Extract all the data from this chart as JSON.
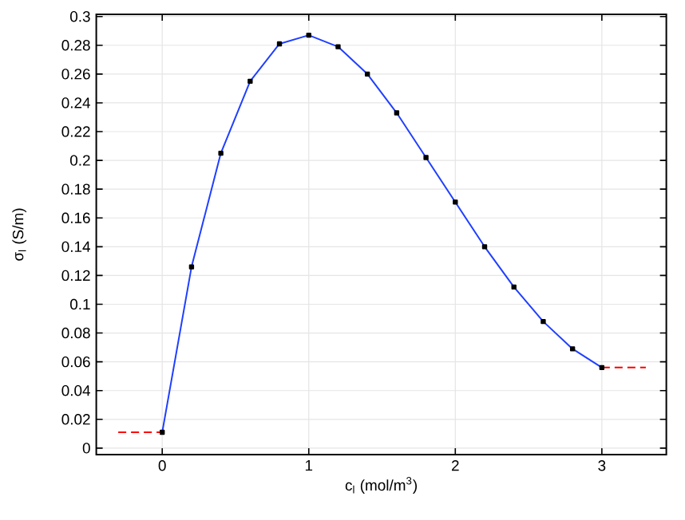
{
  "chart_data": {
    "type": "line",
    "xlabel": "c$_{l}$ (mol/m$^{3}$)",
    "ylabel": "σ$_{l}$ (S/m)",
    "xlim": [
      -0.45,
      3.44
    ],
    "ylim": [
      -0.0045,
      0.3015
    ],
    "xticks": [
      0,
      1,
      2,
      3
    ],
    "yticks": [
      0,
      0.02,
      0.04,
      0.06,
      0.08,
      0.1,
      0.12,
      0.14,
      0.16,
      0.18,
      0.2,
      0.22,
      0.24,
      0.26,
      0.28,
      0.3
    ],
    "grid": true,
    "series": [
      {
        "color": "#1f3fff",
        "marker": "square",
        "line_style": "solid",
        "x": [
          0,
          0.2,
          0.4,
          0.6,
          0.8,
          1.0,
          1.2,
          1.4,
          1.6,
          1.8,
          2.0,
          2.2,
          2.4,
          2.6,
          2.8,
          3.0
        ],
        "values": [
          0.011,
          0.126,
          0.205,
          0.255,
          0.281,
          0.287,
          0.279,
          0.26,
          0.233,
          0.202,
          0.171,
          0.14,
          0.112,
          0.088,
          0.069,
          0.056
        ]
      },
      {
        "color": "#ff0000",
        "marker": "none",
        "line_style": "dashed",
        "x": [
          -0.3,
          0
        ],
        "values": [
          0.011,
          0.011
        ]
      },
      {
        "color": "#ff0000",
        "marker": "none",
        "line_style": "dashed",
        "x": [
          3.0,
          3.3
        ],
        "values": [
          0.056,
          0.056
        ]
      }
    ]
  }
}
